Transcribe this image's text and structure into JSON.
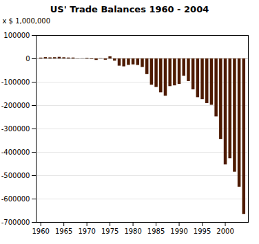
{
  "chart_data": {
    "type": "bar",
    "title": "US' Trade Balances 1960 - 2004",
    "ylabel": "x $ 1,000,000",
    "x": [
      1960,
      1961,
      1962,
      1963,
      1964,
      1965,
      1966,
      1967,
      1968,
      1969,
      1970,
      1971,
      1972,
      1973,
      1974,
      1975,
      1976,
      1977,
      1978,
      1979,
      1980,
      1981,
      1982,
      1983,
      1984,
      1985,
      1986,
      1987,
      1988,
      1989,
      1990,
      1991,
      1992,
      1993,
      1994,
      1995,
      1996,
      1997,
      1998,
      1999,
      2000,
      2001,
      2002,
      2003,
      2004
    ],
    "values": [
      3508,
      5571,
      4521,
      5224,
      6801,
      4951,
      3817,
      3800,
      -632,
      607,
      2603,
      -2260,
      -6416,
      911,
      -5505,
      8903,
      -9483,
      -31091,
      -33947,
      -27568,
      -25500,
      -28023,
      -36485,
      -67102,
      -112522,
      -122173,
      -145081,
      -159557,
      -118534,
      -115241,
      -109030,
      -74068,
      -96897,
      -132451,
      -165831,
      -174170,
      -191000,
      -198400,
      -248200,
      -344663,
      -454000,
      -427200,
      -484700,
      -549400,
      -665400
    ],
    "color": "#4d1a00",
    "xlim": [
      1959,
      2005
    ],
    "xticks": [
      1960,
      1965,
      1970,
      1975,
      1980,
      1985,
      1990,
      1995,
      2000
    ],
    "ylim": [
      -700000,
      100000
    ],
    "yticks": [
      100000,
      0,
      -100000,
      -200000,
      -300000,
      -400000,
      -500000,
      -600000,
      -700000
    ],
    "grid": true
  }
}
